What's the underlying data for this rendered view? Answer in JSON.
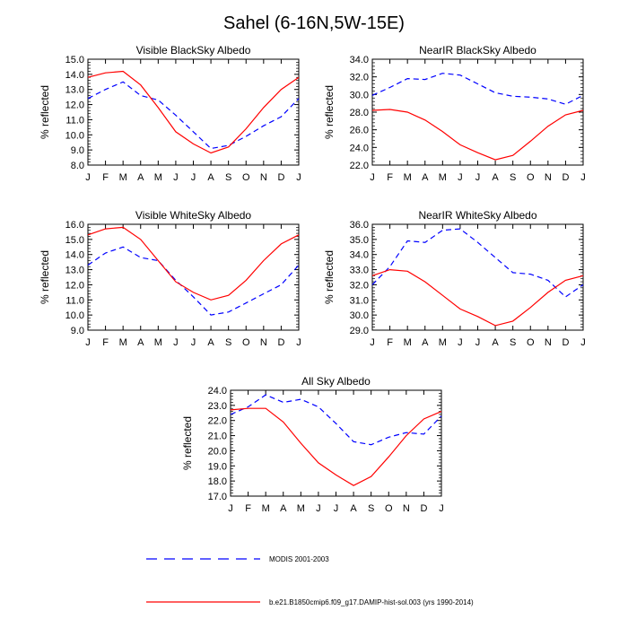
{
  "page": {
    "title": "Sahel (6-16N,5W-15E)"
  },
  "colors": {
    "modis": "#0000ff",
    "model": "#ff0000",
    "axis": "#000000"
  },
  "legend": {
    "items": [
      {
        "label": "MODIS 2001-2003",
        "style": "dashed",
        "color": "#0000ff"
      },
      {
        "label": "b.e21.B1850cmip6.f09_g17.DAMIP-hist-sol.003 (yrs 1990-2014)",
        "style": "solid",
        "color": "#ff0000"
      }
    ]
  },
  "chart_data": [
    {
      "type": "line",
      "title": "Visible BlackSky Albedo",
      "ylabel": "% reflected",
      "categories": [
        "J",
        "F",
        "M",
        "A",
        "M",
        "J",
        "J",
        "A",
        "S",
        "O",
        "N",
        "D",
        "J"
      ],
      "ylim": [
        8.0,
        15.0
      ],
      "yticks": [
        "8.0",
        "9.0",
        "10.0",
        "11.0",
        "12.0",
        "13.0",
        "14.0",
        "15.0"
      ],
      "series": [
        {
          "name": "MODIS 2001-2003",
          "style": "dashed",
          "color": "#0000ff",
          "values": [
            12.4,
            13.0,
            13.5,
            12.6,
            12.3,
            11.3,
            10.2,
            9.1,
            9.3,
            9.9,
            10.6,
            11.2,
            12.4
          ]
        },
        {
          "name": "b.e21.B1850cmip6.f09_g17.DAMIP-hist-sol.003 (yrs 1990-2014)",
          "style": "solid",
          "color": "#ff0000",
          "values": [
            13.8,
            14.1,
            14.2,
            13.3,
            11.8,
            10.2,
            9.4,
            8.8,
            9.2,
            10.4,
            11.8,
            13.0,
            13.8
          ]
        }
      ]
    },
    {
      "type": "line",
      "title": "NearIR BlackSky Albedo",
      "ylabel": "% reflected",
      "categories": [
        "J",
        "F",
        "M",
        "A",
        "M",
        "J",
        "J",
        "A",
        "S",
        "O",
        "N",
        "D",
        "J"
      ],
      "ylim": [
        22.0,
        34.0
      ],
      "yticks": [
        "22.0",
        "24.0",
        "26.0",
        "28.0",
        "30.0",
        "32.0",
        "34.0"
      ],
      "series": [
        {
          "name": "MODIS 2001-2003",
          "style": "dashed",
          "color": "#0000ff",
          "values": [
            29.9,
            30.8,
            31.8,
            31.7,
            32.4,
            32.2,
            31.2,
            30.2,
            29.8,
            29.7,
            29.5,
            28.9,
            29.9
          ]
        },
        {
          "name": "b.e21.B1850cmip6.f09_g17.DAMIP-hist-sol.003 (yrs 1990-2014)",
          "style": "solid",
          "color": "#ff0000",
          "values": [
            28.2,
            28.3,
            28.0,
            27.1,
            25.8,
            24.3,
            23.4,
            22.6,
            23.1,
            24.7,
            26.4,
            27.7,
            28.2
          ]
        }
      ]
    },
    {
      "type": "line",
      "title": "Visible WhiteSky Albedo",
      "ylabel": "% reflected",
      "categories": [
        "J",
        "F",
        "M",
        "A",
        "M",
        "J",
        "J",
        "A",
        "S",
        "O",
        "N",
        "D",
        "J"
      ],
      "ylim": [
        9.0,
        16.0
      ],
      "yticks": [
        "9.0",
        "10.0",
        "11.0",
        "12.0",
        "13.0",
        "14.0",
        "15.0",
        "16.0"
      ],
      "series": [
        {
          "name": "MODIS 2001-2003",
          "style": "dashed",
          "color": "#0000ff",
          "values": [
            13.3,
            14.1,
            14.5,
            13.8,
            13.6,
            12.3,
            11.2,
            10.0,
            10.2,
            10.8,
            11.4,
            12.0,
            13.3
          ]
        },
        {
          "name": "b.e21.B1850cmip6.f09_g17.DAMIP-hist-sol.003 (yrs 1990-2014)",
          "style": "solid",
          "color": "#ff0000",
          "values": [
            15.3,
            15.7,
            15.8,
            15.0,
            13.6,
            12.2,
            11.5,
            11.0,
            11.3,
            12.3,
            13.6,
            14.7,
            15.3
          ]
        }
      ]
    },
    {
      "type": "line",
      "title": "NearIR WhiteSky Albedo",
      "ylabel": "% reflected",
      "categories": [
        "J",
        "F",
        "M",
        "A",
        "M",
        "J",
        "J",
        "A",
        "S",
        "O",
        "N",
        "D",
        "J"
      ],
      "ylim": [
        29.0,
        36.0
      ],
      "yticks": [
        "29.0",
        "30.0",
        "31.0",
        "32.0",
        "33.0",
        "34.0",
        "35.0",
        "36.0"
      ],
      "series": [
        {
          "name": "MODIS 2001-2003",
          "style": "dashed",
          "color": "#0000ff",
          "values": [
            32.0,
            33.2,
            34.9,
            34.8,
            35.6,
            35.7,
            34.8,
            33.8,
            32.8,
            32.7,
            32.3,
            31.2,
            32.0
          ]
        },
        {
          "name": "b.e21.B1850cmip6.f09_g17.DAMIP-hist-sol.003 (yrs 1990-2014)",
          "style": "solid",
          "color": "#ff0000",
          "values": [
            32.6,
            33.0,
            32.9,
            32.2,
            31.3,
            30.4,
            29.9,
            29.3,
            29.6,
            30.5,
            31.5,
            32.3,
            32.6
          ]
        }
      ]
    },
    {
      "type": "line",
      "title": "All Sky Albedo",
      "ylabel": "% reflected",
      "categories": [
        "J",
        "F",
        "M",
        "A",
        "M",
        "J",
        "J",
        "A",
        "S",
        "O",
        "N",
        "D",
        "J"
      ],
      "ylim": [
        17.0,
        24.0
      ],
      "yticks": [
        "17.0",
        "18.0",
        "19.0",
        "20.0",
        "21.0",
        "22.0",
        "23.0",
        "24.0"
      ],
      "series": [
        {
          "name": "MODIS 2001-2003",
          "style": "dashed",
          "color": "#0000ff",
          "values": [
            22.4,
            22.9,
            23.7,
            23.2,
            23.4,
            22.9,
            21.8,
            20.6,
            20.4,
            20.9,
            21.2,
            21.1,
            22.3
          ]
        },
        {
          "name": "b.e21.B1850cmip6.f09_g17.DAMIP-hist-sol.003 (yrs 1990-2014)",
          "style": "solid",
          "color": "#ff0000",
          "values": [
            22.7,
            22.8,
            22.8,
            21.9,
            20.5,
            19.2,
            18.4,
            17.7,
            18.3,
            19.6,
            21.0,
            22.1,
            22.6
          ]
        }
      ]
    }
  ]
}
